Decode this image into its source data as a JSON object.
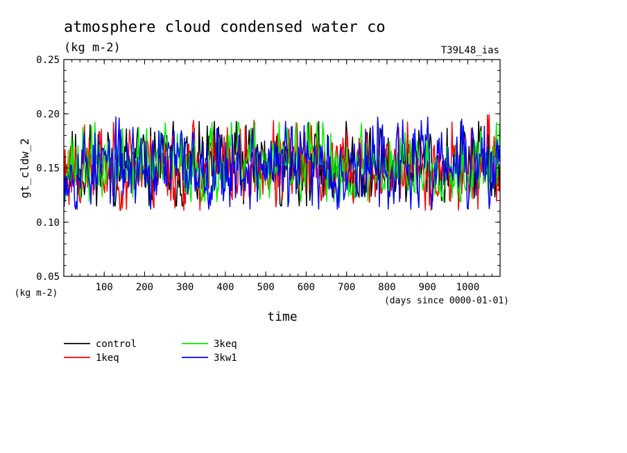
{
  "chart_data": {
    "type": "line",
    "title": "atmosphere cloud condensed water co",
    "subtitle": "(kg m-2)",
    "tag": "T39L48_ias",
    "xlabel": "time",
    "ylabel": "gt_cldw_2",
    "yunit": "(kg m-2)",
    "xunit": "(days since 0000-01-01)",
    "xlim": [
      0,
      1080
    ],
    "ylim": [
      0.05,
      0.25
    ],
    "xticks": [
      100,
      200,
      300,
      400,
      500,
      600,
      700,
      800,
      900,
      1000
    ],
    "yticks": [
      0.05,
      0.1,
      0.15,
      0.2,
      0.25
    ],
    "ytick_labels": [
      "0.05",
      "0.10",
      "0.15",
      "0.20",
      "0.25"
    ],
    "grid": false,
    "legend_position": "below-left",
    "n_points": 540,
    "series": [
      {
        "name": "control",
        "color": "#000000",
        "mean": 0.152,
        "amplitude": 0.019,
        "min": 0.115,
        "max": 0.193,
        "seed": 11
      },
      {
        "name": "1keq",
        "color": "#ff0000",
        "mean": 0.151,
        "amplitude": 0.019,
        "min": 0.111,
        "max": 0.199,
        "seed": 23
      },
      {
        "name": "3keq",
        "color": "#00ee00",
        "mean": 0.153,
        "amplitude": 0.018,
        "min": 0.119,
        "max": 0.192,
        "seed": 37
      },
      {
        "name": "3kw1",
        "color": "#0000ff",
        "mean": 0.152,
        "amplitude": 0.019,
        "min": 0.112,
        "max": 0.197,
        "seed": 53
      }
    ]
  }
}
